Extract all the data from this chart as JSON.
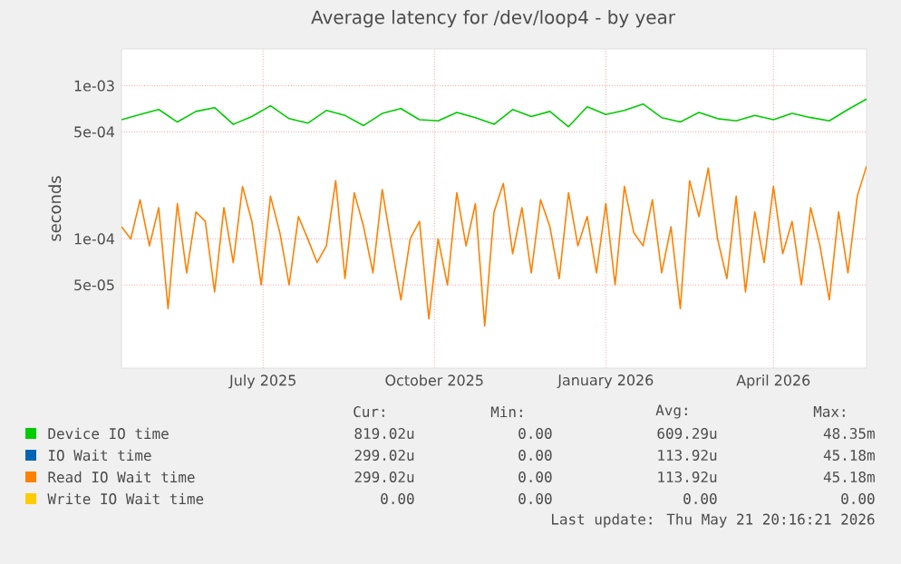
{
  "chart_data": {
    "type": "line",
    "title": "Average latency for /dev/loop4 - by year",
    "ylabel": "seconds",
    "log": "y",
    "grid": true,
    "legend": "bottom",
    "marker": "none",
    "line_style": "solid",
    "xlim": [
      "2025-04-16",
      "2026-05-21"
    ],
    "ylim": [
      1.43e-05,
      0.00174
    ],
    "xticks": [
      {
        "value": "2025-07-01",
        "label": "July 2025"
      },
      {
        "value": "2025-10-01",
        "label": "October 2025"
      },
      {
        "value": "2026-01-01",
        "label": "January 2026"
      },
      {
        "value": "2026-04-01",
        "label": "April 2026"
      }
    ],
    "yticks": [
      {
        "value": 5e-05,
        "label": "5e-05"
      },
      {
        "value": 0.0001,
        "label": "1e-04"
      },
      {
        "value": 0.0005,
        "label": "5e-04"
      },
      {
        "value": 0.001,
        "label": "1e-03"
      }
    ],
    "series": [
      {
        "name": "Device IO time",
        "color": "#00cc00",
        "x": [
          "2025-04-16",
          "2025-04-26",
          "2025-05-06",
          "2025-05-16",
          "2025-05-26",
          "2025-06-05",
          "2025-06-15",
          "2025-06-25",
          "2025-07-05",
          "2025-07-15",
          "2025-07-25",
          "2025-08-04",
          "2025-08-14",
          "2025-08-24",
          "2025-09-03",
          "2025-09-13",
          "2025-09-23",
          "2025-10-03",
          "2025-10-13",
          "2025-10-23",
          "2025-11-02",
          "2025-11-12",
          "2025-11-22",
          "2025-12-02",
          "2025-12-12",
          "2025-12-22",
          "2026-01-01",
          "2026-01-11",
          "2026-01-21",
          "2026-01-31",
          "2026-02-10",
          "2026-02-20",
          "2026-03-02",
          "2026-03-12",
          "2026-03-22",
          "2026-04-01",
          "2026-04-11",
          "2026-04-21",
          "2026-05-01",
          "2026-05-11",
          "2026-05-21"
        ],
        "values": [
          0.0006,
          0.00065,
          0.0007,
          0.00058,
          0.00068,
          0.00072,
          0.00056,
          0.00063,
          0.00074,
          0.00061,
          0.00057,
          0.00069,
          0.00064,
          0.00055,
          0.00066,
          0.00071,
          0.0006,
          0.00059,
          0.00067,
          0.00062,
          0.00056,
          0.0007,
          0.00063,
          0.00068,
          0.00054,
          0.00073,
          0.00065,
          0.00069,
          0.00076,
          0.00062,
          0.00058,
          0.00067,
          0.00061,
          0.00059,
          0.00064,
          0.0006,
          0.00066,
          0.00062,
          0.00059,
          0.0007,
          0.000819
        ]
      },
      {
        "name": "IO Wait time",
        "color": "#0066b3",
        "values": [
          null
        ]
      },
      {
        "name": "Read IO Wait time",
        "color": "#ff8000",
        "x": [
          "2025-04-16",
          "2025-04-21",
          "2025-04-26",
          "2025-05-01",
          "2025-05-06",
          "2025-05-11",
          "2025-05-16",
          "2025-05-21",
          "2025-05-26",
          "2025-05-31",
          "2025-06-05",
          "2025-06-10",
          "2025-06-15",
          "2025-06-20",
          "2025-06-25",
          "2025-06-30",
          "2025-07-05",
          "2025-07-10",
          "2025-07-15",
          "2025-07-20",
          "2025-07-25",
          "2025-07-30",
          "2025-08-04",
          "2025-08-09",
          "2025-08-14",
          "2025-08-19",
          "2025-08-24",
          "2025-08-29",
          "2025-09-03",
          "2025-09-08",
          "2025-09-13",
          "2025-09-18",
          "2025-09-23",
          "2025-09-28",
          "2025-10-03",
          "2025-10-08",
          "2025-10-13",
          "2025-10-18",
          "2025-10-23",
          "2025-10-28",
          "2025-11-02",
          "2025-11-07",
          "2025-11-12",
          "2025-11-17",
          "2025-11-22",
          "2025-11-27",
          "2025-12-02",
          "2025-12-07",
          "2025-12-12",
          "2025-12-17",
          "2025-12-22",
          "2025-12-27",
          "2026-01-01",
          "2026-01-06",
          "2026-01-11",
          "2026-01-16",
          "2026-01-21",
          "2026-01-26",
          "2026-01-31",
          "2026-02-05",
          "2026-02-10",
          "2026-02-15",
          "2026-02-20",
          "2026-02-25",
          "2026-03-02",
          "2026-03-07",
          "2026-03-12",
          "2026-03-17",
          "2026-03-22",
          "2026-03-27",
          "2026-04-01",
          "2026-04-06",
          "2026-04-11",
          "2026-04-16",
          "2026-04-21",
          "2026-04-26",
          "2026-05-01",
          "2026-05-06",
          "2026-05-11",
          "2026-05-16",
          "2026-05-21"
        ],
        "values": [
          0.00012,
          0.0001,
          0.00018,
          9e-05,
          0.00016,
          3.5e-05,
          0.00017,
          6e-05,
          0.00015,
          0.00013,
          4.5e-05,
          0.00016,
          7e-05,
          0.00022,
          0.00013,
          5e-05,
          0.00019,
          0.00011,
          5e-05,
          0.00014,
          0.0001,
          7e-05,
          9e-05,
          0.00024,
          5.5e-05,
          0.0002,
          0.00012,
          6e-05,
          0.00021,
          9e-05,
          4e-05,
          0.0001,
          0.00013,
          3e-05,
          0.0001,
          5e-05,
          0.0002,
          9e-05,
          0.00017,
          2.7e-05,
          0.00015,
          0.00023,
          8e-05,
          0.00016,
          6e-05,
          0.00018,
          0.00012,
          5.5e-05,
          0.0002,
          9e-05,
          0.00014,
          6e-05,
          0.00017,
          5e-05,
          0.00022,
          0.00011,
          9e-05,
          0.00018,
          6e-05,
          0.00012,
          3.5e-05,
          0.00024,
          0.00014,
          0.00029,
          0.0001,
          5.5e-05,
          0.00019,
          4.5e-05,
          0.00015,
          7e-05,
          0.00022,
          8e-05,
          0.00013,
          5e-05,
          0.00016,
          9e-05,
          4e-05,
          0.00015,
          6e-05,
          0.00019,
          0.000299
        ]
      },
      {
        "name": "Write IO Wait time",
        "color": "#ffcc00",
        "values": [
          null
        ]
      }
    ],
    "annotations": [
      "Cur:",
      "Min:",
      "Avg:",
      "Max:",
      "819.02u",
      "0.00",
      "609.29u",
      "48.35m",
      "299.02u",
      "0.00",
      "113.92u",
      "45.18m",
      "299.02u",
      "0.00",
      "113.92u",
      "45.18m",
      "0.00",
      "0.00",
      "0.00",
      "0.00",
      "Last update: Thu May 21 20:16:21 2026"
    ]
  }
}
